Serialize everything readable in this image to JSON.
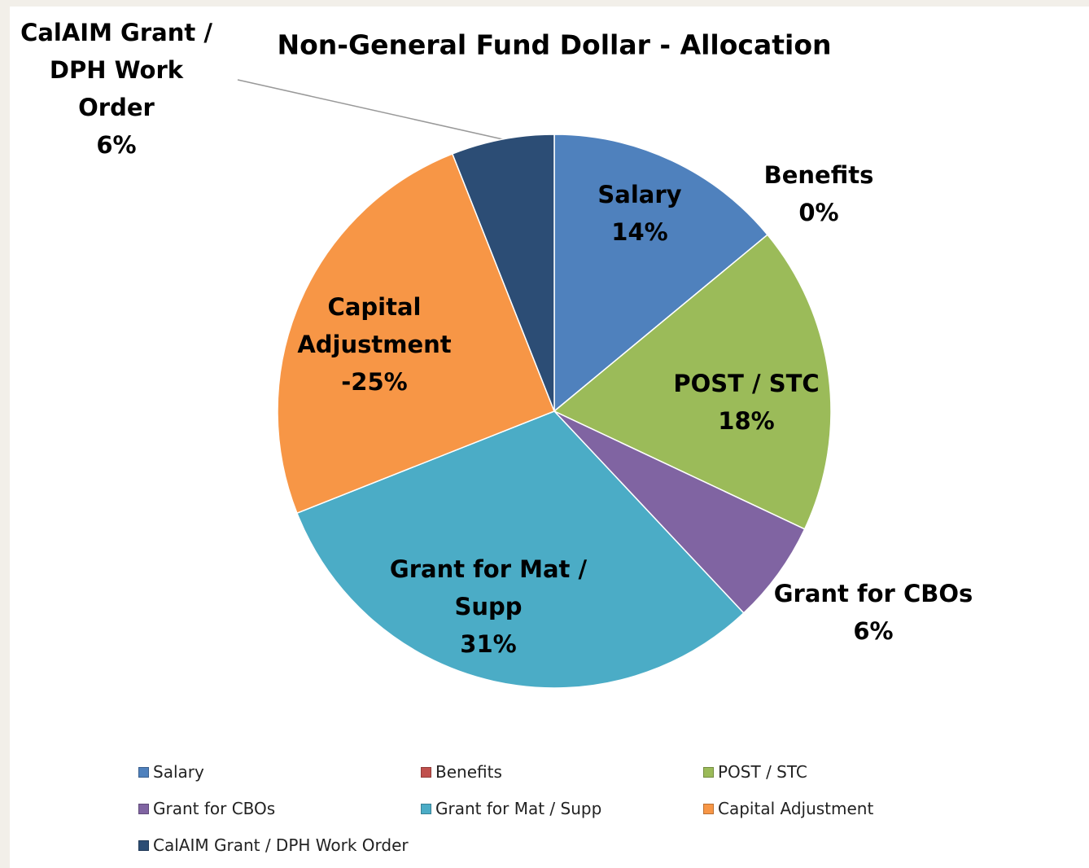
{
  "chart_data": {
    "type": "pie",
    "title": "Non-General Fund Dollar - Allocation",
    "categories": [
      "Salary",
      "Benefits",
      "POST / STC",
      "Grant for CBOs",
      "Grant for Mat / Supp",
      "Capital Adjustment",
      "CalAIM Grant / DPH Work Order"
    ],
    "values": [
      14,
      0,
      18,
      6,
      31,
      -25,
      6
    ],
    "value_labels": [
      "14%",
      "0%",
      "18%",
      "6%",
      "31%",
      "-25%",
      "6%"
    ],
    "colors": [
      "#4f81bd",
      "#c0504d",
      "#9bbb59",
      "#8064a2",
      "#4bacc6",
      "#f79646",
      "#2c4d75"
    ],
    "legend": "bottom"
  }
}
